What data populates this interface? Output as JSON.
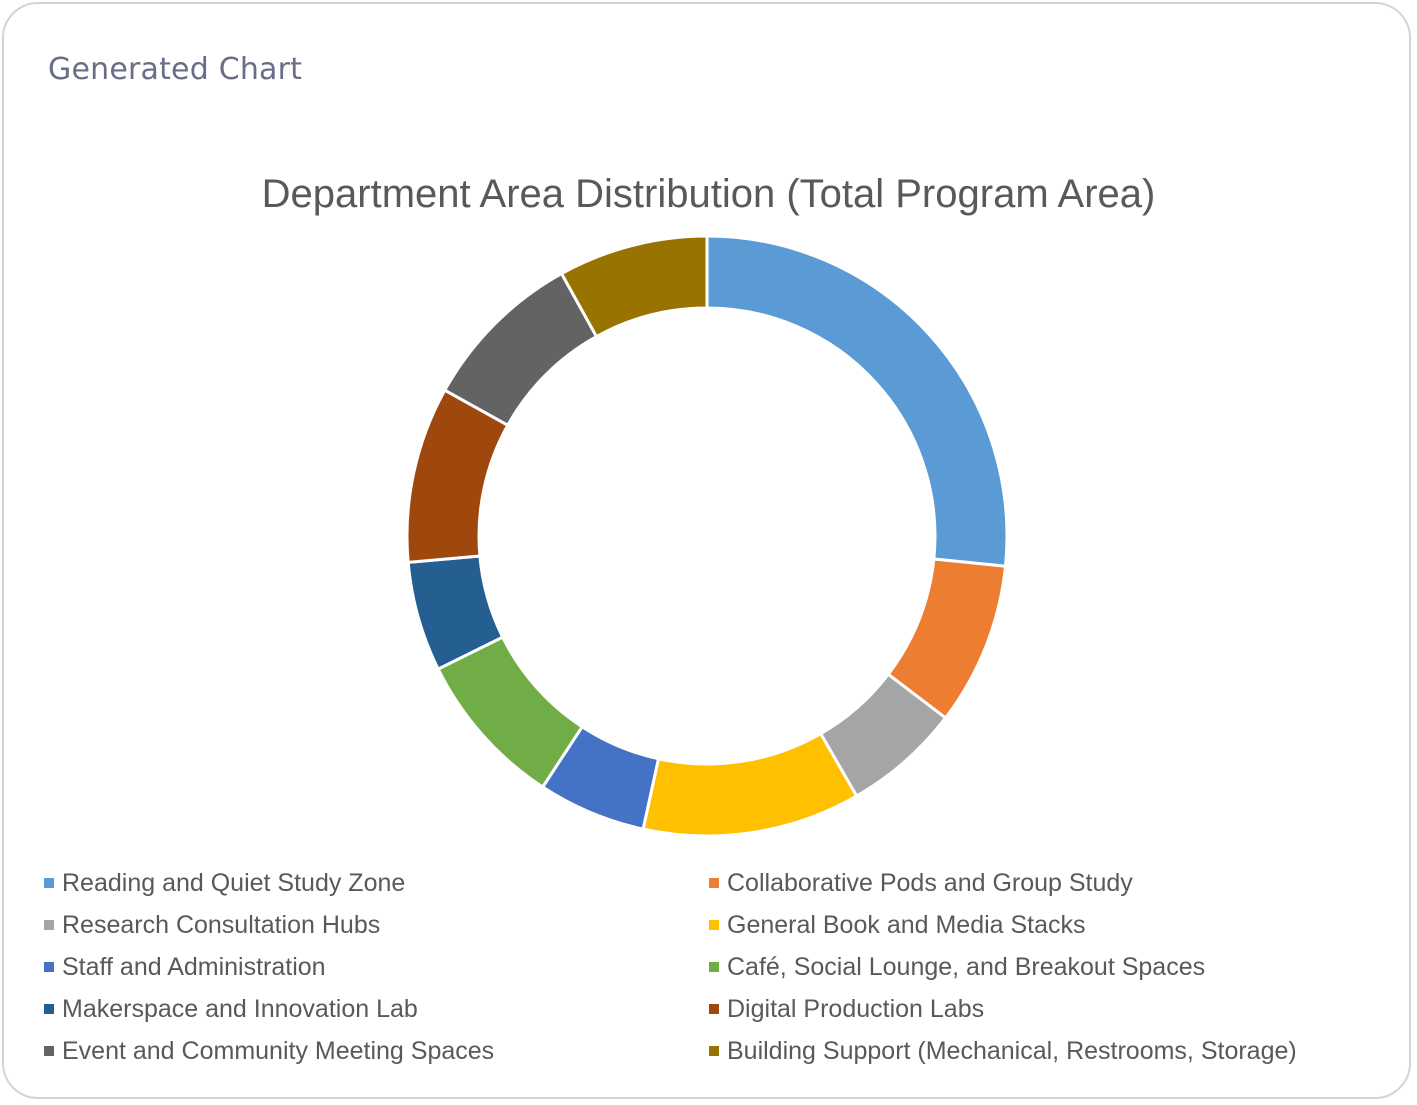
{
  "card": {
    "title": "Generated Chart"
  },
  "chart_data": {
    "type": "pie",
    "style": "donut",
    "title": "Department Area Distribution (Total Program Area)",
    "legend_position": "bottom",
    "categories": [
      "Reading and Quiet Study Zone",
      "Collaborative Pods and Group Study",
      "Research Consultation Hubs",
      "General Book and Media Stacks",
      "Staff and Administration",
      "Café, Social Lounge, and Breakout Spaces",
      "Makerspace and Innovation Lab",
      "Digital Production Labs",
      "Event and Community Meeting Spaces",
      "Building Support (Mechanical, Restrooms, Storage)"
    ],
    "values": [
      26.1,
      8.6,
      6.2,
      11.5,
      5.7,
      8.3,
      5.8,
      9.3,
      8.7,
      7.9
    ],
    "value_unit": "percent",
    "colors": [
      "#5b9bd5",
      "#ed7d31",
      "#a5a5a5",
      "#ffc000",
      "#4472c4",
      "#70ad47",
      "#255e91",
      "#9e480e",
      "#636363",
      "#997300"
    ]
  }
}
